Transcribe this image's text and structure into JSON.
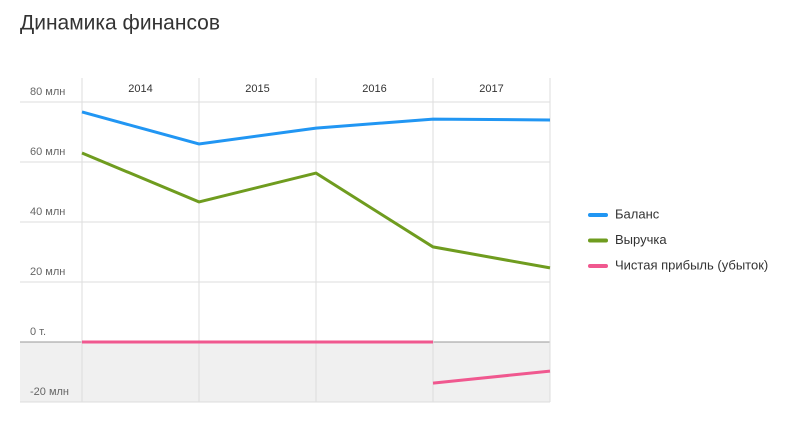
{
  "chart_data": {
    "type": "line",
    "title": "Динамика финансов",
    "header_labels": [
      "2014",
      "2015",
      "2016",
      "2017"
    ],
    "series": [
      {
        "name": "Баланс",
        "color": "#2196f3",
        "x": [
          0,
          1,
          2,
          3,
          4
        ],
        "values": [
          76.7,
          66,
          71.3,
          74.3,
          74
        ]
      },
      {
        "name": "Выручка",
        "color": "#6f9c1f",
        "x": [
          0,
          1,
          2,
          3,
          4
        ],
        "values": [
          63,
          46.7,
          56.3,
          31.7,
          24.7
        ]
      },
      {
        "name": "Чистая прибыль (убыток)",
        "color": "#f0588f",
        "x": [
          0,
          1,
          2,
          3,
          null,
          3,
          4
        ],
        "values": [
          0,
          0,
          0,
          0,
          null,
          -13.7,
          -9.7
        ]
      }
    ],
    "ylim": [
      -20,
      80
    ],
    "yticks": [
      {
        "value": -20,
        "label": "-20 млн"
      },
      {
        "value": 0,
        "label": "0 т."
      },
      {
        "value": 20,
        "label": "20 млн"
      },
      {
        "value": 40,
        "label": "40 млн"
      },
      {
        "value": 60,
        "label": "60 млн"
      },
      {
        "value": 80,
        "label": "80 млн"
      }
    ],
    "grid": true,
    "legend": "right"
  }
}
